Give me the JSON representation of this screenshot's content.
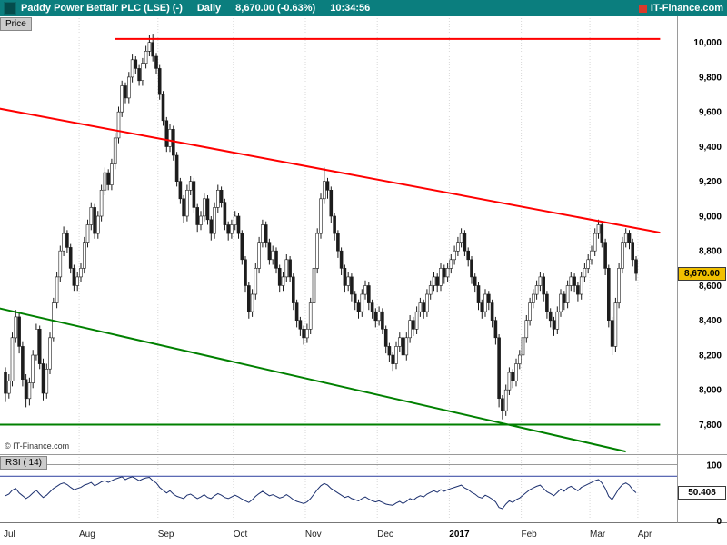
{
  "header": {
    "title": "Paddy Power Betfair PLC (LSE) (-)",
    "period": "Daily",
    "quote": "8,670.00 (-0.63%)",
    "time": "10:34:56",
    "brand": "IT-Finance.com"
  },
  "price_panel": {
    "tab_label": "Price",
    "badge": "8,670.00",
    "watermark": "© IT-Finance.com"
  },
  "rsi_panel": {
    "tab_label": "RSI ( 14)",
    "badge": "50.408"
  },
  "colors": {
    "header_bg": "#0b7e7e",
    "candle_stroke": "#1c1c1c",
    "up_fill": "#ffffff",
    "down_fill": "#1c1c1c",
    "trend_red": "#ff0000",
    "trend_green": "#008000",
    "rsi_line": "#1b2f6e",
    "rsi_level": "#4455aa",
    "price_badge_bg": "#f0c000",
    "rsi_badge_bg": "#ffffff",
    "grid": "#d8d8d8",
    "separator": "#9a9a9a"
  },
  "chart_data": {
    "type": "candlestick",
    "symbol": "Paddy Power Betfair PLC (LSE)",
    "timeframe": "Daily",
    "last_price": 8670.0,
    "change_pct": -0.63,
    "quote_time": "10:34:56",
    "ylim": [
      7630,
      10150
    ],
    "y_ticks": [
      10000,
      9800,
      9600,
      9400,
      9200,
      9000,
      8800,
      8600,
      8400,
      8200,
      8000,
      7800
    ],
    "x_labels": [
      {
        "label": "Jul",
        "day": 0
      },
      {
        "label": "Aug",
        "day": 22
      },
      {
        "label": "Sep",
        "day": 45
      },
      {
        "label": "Oct",
        "day": 67
      },
      {
        "label": "Nov",
        "day": 88
      },
      {
        "label": "Dec",
        "day": 109
      },
      {
        "label": "2017",
        "day": 130
      },
      {
        "label": "Feb",
        "day": 151
      },
      {
        "label": "Mar",
        "day": 171
      },
      {
        "label": "Apr",
        "day": 185
      }
    ],
    "candles_ohlc": [
      [
        8100,
        8130,
        7930,
        7980
      ],
      [
        7980,
        8090,
        7950,
        8050
      ],
      [
        8050,
        8330,
        8020,
        8300
      ],
      [
        8300,
        8460,
        8270,
        8420
      ],
      [
        8420,
        8440,
        8210,
        8250
      ],
      [
        8250,
        8280,
        8020,
        8060
      ],
      [
        8060,
        8090,
        7900,
        7950
      ],
      [
        7950,
        8070,
        7910,
        8040
      ],
      [
        8040,
        8230,
        8010,
        8200
      ],
      [
        8200,
        8380,
        8170,
        8350
      ],
      [
        8350,
        8370,
        8120,
        8150
      ],
      [
        8150,
        8180,
        7940,
        7980
      ],
      [
        7980,
        8150,
        7950,
        8120
      ],
      [
        8120,
        8330,
        8090,
        8300
      ],
      [
        8300,
        8530,
        8280,
        8500
      ],
      [
        8500,
        8680,
        8470,
        8650
      ],
      [
        8650,
        8830,
        8620,
        8800
      ],
      [
        8800,
        8940,
        8770,
        8900
      ],
      [
        8900,
        8920,
        8790,
        8820
      ],
      [
        8820,
        8840,
        8670,
        8700
      ],
      [
        8700,
        8720,
        8570,
        8600
      ],
      [
        8600,
        8680,
        8570,
        8650
      ],
      [
        8650,
        8730,
        8620,
        8700
      ],
      [
        8700,
        8880,
        8670,
        8850
      ],
      [
        8850,
        8980,
        8820,
        8950
      ],
      [
        8950,
        9080,
        8920,
        9050
      ],
      [
        9050,
        9070,
        8870,
        8900
      ],
      [
        8900,
        9030,
        8870,
        9000
      ],
      [
        9000,
        9180,
        8970,
        9150
      ],
      [
        9150,
        9280,
        9120,
        9250
      ],
      [
        9250,
        9270,
        9150,
        9180
      ],
      [
        9180,
        9330,
        9150,
        9300
      ],
      [
        9300,
        9480,
        9270,
        9450
      ],
      [
        9450,
        9630,
        9420,
        9600
      ],
      [
        9600,
        9780,
        9570,
        9750
      ],
      [
        9750,
        9770,
        9650,
        9680
      ],
      [
        9680,
        9830,
        9650,
        9800
      ],
      [
        9800,
        9930,
        9770,
        9900
      ],
      [
        9900,
        9920,
        9820,
        9850
      ],
      [
        9850,
        9870,
        9750,
        9780
      ],
      [
        9780,
        9910,
        9750,
        9880
      ],
      [
        9880,
        9980,
        9850,
        9950
      ],
      [
        9950,
        10040,
        9920,
        10000
      ],
      [
        10000,
        10050,
        9890,
        9920
      ],
      [
        9920,
        9940,
        9820,
        9850
      ],
      [
        9850,
        9870,
        9670,
        9700
      ],
      [
        9700,
        9720,
        9520,
        9550
      ],
      [
        9550,
        9570,
        9370,
        9400
      ],
      [
        9400,
        9530,
        9370,
        9500
      ],
      [
        9500,
        9520,
        9320,
        9350
      ],
      [
        9350,
        9370,
        9170,
        9200
      ],
      [
        9200,
        9220,
        9070,
        9100
      ],
      [
        9100,
        9120,
        8960,
        9000
      ],
      [
        9000,
        9180,
        8970,
        9150
      ],
      [
        9150,
        9230,
        9120,
        9200
      ],
      [
        9200,
        9220,
        9020,
        9050
      ],
      [
        9050,
        9070,
        8910,
        8950
      ],
      [
        8950,
        9030,
        8920,
        9000
      ],
      [
        9000,
        9130,
        8970,
        9100
      ],
      [
        9100,
        9120,
        8950,
        8980
      ],
      [
        8980,
        9000,
        8860,
        8900
      ],
      [
        8900,
        9080,
        8870,
        9050
      ],
      [
        9050,
        9180,
        9020,
        9150
      ],
      [
        9150,
        9170,
        9050,
        9080
      ],
      [
        9080,
        9100,
        8920,
        8950
      ],
      [
        8950,
        8970,
        8860,
        8900
      ],
      [
        8900,
        8980,
        8870,
        8950
      ],
      [
        8950,
        9030,
        8920,
        9000
      ],
      [
        9000,
        9020,
        8870,
        8900
      ],
      [
        8900,
        8920,
        8720,
        8750
      ],
      [
        8750,
        8770,
        8560,
        8600
      ],
      [
        8600,
        8620,
        8410,
        8450
      ],
      [
        8450,
        8580,
        8420,
        8550
      ],
      [
        8550,
        8730,
        8520,
        8700
      ],
      [
        8700,
        8880,
        8670,
        8850
      ],
      [
        8850,
        8980,
        8820,
        8950
      ],
      [
        8950,
        8970,
        8820,
        8850
      ],
      [
        8850,
        8870,
        8720,
        8750
      ],
      [
        8750,
        8830,
        8720,
        8800
      ],
      [
        8800,
        8820,
        8670,
        8700
      ],
      [
        8700,
        8720,
        8560,
        8600
      ],
      [
        8600,
        8680,
        8570,
        8650
      ],
      [
        8650,
        8780,
        8620,
        8750
      ],
      [
        8750,
        8770,
        8620,
        8650
      ],
      [
        8650,
        8670,
        8460,
        8500
      ],
      [
        8500,
        8520,
        8360,
        8400
      ],
      [
        8400,
        8420,
        8310,
        8350
      ],
      [
        8350,
        8370,
        8260,
        8300
      ],
      [
        8300,
        8380,
        8270,
        8350
      ],
      [
        8350,
        8530,
        8320,
        8500
      ],
      [
        8500,
        8730,
        8470,
        8700
      ],
      [
        8700,
        8930,
        8670,
        8900
      ],
      [
        8900,
        9130,
        8870,
        9100
      ],
      [
        9100,
        9280,
        9070,
        9200
      ],
      [
        9200,
        9220,
        9100,
        9150
      ],
      [
        9150,
        9170,
        8960,
        9000
      ],
      [
        9000,
        9020,
        8860,
        8900
      ],
      [
        8900,
        8920,
        8760,
        8800
      ],
      [
        8800,
        8820,
        8660,
        8700
      ],
      [
        8700,
        8720,
        8560,
        8600
      ],
      [
        8600,
        8680,
        8570,
        8650
      ],
      [
        8650,
        8670,
        8510,
        8550
      ],
      [
        8550,
        8570,
        8460,
        8500
      ],
      [
        8500,
        8520,
        8410,
        8450
      ],
      [
        8450,
        8580,
        8420,
        8550
      ],
      [
        8550,
        8630,
        8520,
        8600
      ],
      [
        8600,
        8620,
        8460,
        8500
      ],
      [
        8500,
        8520,
        8410,
        8450
      ],
      [
        8450,
        8470,
        8360,
        8400
      ],
      [
        8400,
        8480,
        8370,
        8450
      ],
      [
        8450,
        8470,
        8320,
        8350
      ],
      [
        8350,
        8370,
        8210,
        8250
      ],
      [
        8250,
        8270,
        8160,
        8200
      ],
      [
        8200,
        8220,
        8110,
        8150
      ],
      [
        8150,
        8280,
        8120,
        8250
      ],
      [
        8250,
        8330,
        8220,
        8300
      ],
      [
        8300,
        8320,
        8160,
        8200
      ],
      [
        8200,
        8330,
        8170,
        8300
      ],
      [
        8300,
        8430,
        8270,
        8400
      ],
      [
        8400,
        8420,
        8310,
        8350
      ],
      [
        8350,
        8480,
        8320,
        8450
      ],
      [
        8450,
        8530,
        8420,
        8500
      ],
      [
        8500,
        8520,
        8410,
        8450
      ],
      [
        8450,
        8580,
        8420,
        8550
      ],
      [
        8550,
        8630,
        8520,
        8600
      ],
      [
        8600,
        8680,
        8570,
        8650
      ],
      [
        8650,
        8670,
        8560,
        8600
      ],
      [
        8600,
        8730,
        8570,
        8700
      ],
      [
        8700,
        8720,
        8610,
        8650
      ],
      [
        8650,
        8730,
        8620,
        8700
      ],
      [
        8700,
        8780,
        8670,
        8750
      ],
      [
        8750,
        8830,
        8720,
        8800
      ],
      [
        8800,
        8880,
        8770,
        8850
      ],
      [
        8850,
        8930,
        8820,
        8900
      ],
      [
        8900,
        8920,
        8770,
        8800
      ],
      [
        8800,
        8820,
        8710,
        8750
      ],
      [
        8750,
        8770,
        8610,
        8650
      ],
      [
        8650,
        8670,
        8560,
        8600
      ],
      [
        8600,
        8620,
        8460,
        8500
      ],
      [
        8500,
        8520,
        8410,
        8450
      ],
      [
        8450,
        8580,
        8420,
        8550
      ],
      [
        8550,
        8570,
        8460,
        8500
      ],
      [
        8500,
        8520,
        8360,
        8400
      ],
      [
        8400,
        8420,
        8260,
        8300
      ],
      [
        8300,
        8320,
        7900,
        7950
      ],
      [
        7950,
        7970,
        7830,
        7880
      ],
      [
        7880,
        8030,
        7850,
        8000
      ],
      [
        8000,
        8130,
        7970,
        8100
      ],
      [
        8100,
        8120,
        8010,
        8050
      ],
      [
        8050,
        8180,
        8020,
        8150
      ],
      [
        8150,
        8230,
        8120,
        8200
      ],
      [
        8200,
        8330,
        8170,
        8300
      ],
      [
        8300,
        8430,
        8270,
        8400
      ],
      [
        8400,
        8530,
        8370,
        8500
      ],
      [
        8500,
        8580,
        8470,
        8550
      ],
      [
        8550,
        8630,
        8520,
        8600
      ],
      [
        8600,
        8680,
        8570,
        8650
      ],
      [
        8650,
        8670,
        8510,
        8550
      ],
      [
        8550,
        8570,
        8410,
        8450
      ],
      [
        8450,
        8470,
        8360,
        8400
      ],
      [
        8400,
        8420,
        8310,
        8350
      ],
      [
        8350,
        8480,
        8320,
        8450
      ],
      [
        8450,
        8580,
        8420,
        8550
      ],
      [
        8550,
        8570,
        8460,
        8500
      ],
      [
        8500,
        8630,
        8470,
        8600
      ],
      [
        8600,
        8680,
        8570,
        8650
      ],
      [
        8650,
        8670,
        8560,
        8600
      ],
      [
        8600,
        8620,
        8510,
        8550
      ],
      [
        8550,
        8680,
        8520,
        8650
      ],
      [
        8650,
        8730,
        8620,
        8700
      ],
      [
        8700,
        8780,
        8670,
        8750
      ],
      [
        8750,
        8830,
        8720,
        8800
      ],
      [
        8800,
        8930,
        8770,
        8900
      ],
      [
        8900,
        8980,
        8870,
        8950
      ],
      [
        8950,
        8970,
        8820,
        8850
      ],
      [
        8850,
        8870,
        8660,
        8700
      ],
      [
        8700,
        8720,
        8360,
        8400
      ],
      [
        8400,
        8420,
        8200,
        8250
      ],
      [
        8250,
        8530,
        8220,
        8500
      ],
      [
        8500,
        8730,
        8470,
        8700
      ],
      [
        8700,
        8880,
        8670,
        8850
      ],
      [
        8850,
        8930,
        8820,
        8900
      ],
      [
        8900,
        8920,
        8810,
        8850
      ],
      [
        8850,
        8870,
        8710,
        8750
      ],
      [
        8750,
        8770,
        8630,
        8670
      ]
    ],
    "rsi": {
      "period": 14,
      "range": [
        0,
        100
      ],
      "ticks": [
        100,
        0
      ],
      "upper_level": 80,
      "last": 50.408,
      "values": [
        45,
        48,
        55,
        58,
        50,
        45,
        40,
        44,
        50,
        55,
        48,
        42,
        46,
        52,
        58,
        62,
        66,
        68,
        65,
        60,
        56,
        58,
        60,
        64,
        66,
        69,
        63,
        66,
        70,
        72,
        69,
        72,
        75,
        77,
        79,
        74,
        77,
        79,
        76,
        72,
        75,
        77,
        78,
        72,
        68,
        60,
        55,
        50,
        54,
        48,
        44,
        42,
        40,
        46,
        48,
        44,
        40,
        43,
        47,
        42,
        40,
        45,
        49,
        46,
        42,
        40,
        43,
        46,
        43,
        39,
        36,
        33,
        38,
        44,
        49,
        53,
        49,
        45,
        47,
        44,
        41,
        43,
        47,
        43,
        38,
        35,
        33,
        31,
        34,
        40,
        48,
        56,
        63,
        67,
        64,
        58,
        54,
        50,
        46,
        42,
        44,
        40,
        38,
        36,
        40,
        43,
        39,
        36,
        34,
        36,
        33,
        30,
        29,
        28,
        32,
        35,
        31,
        35,
        40,
        37,
        42,
        45,
        43,
        48,
        51,
        54,
        51,
        56,
        53,
        56,
        58,
        60,
        62,
        64,
        59,
        56,
        51,
        48,
        43,
        41,
        46,
        43,
        39,
        34,
        24,
        22,
        30,
        36,
        33,
        38,
        41,
        46,
        51,
        56,
        59,
        62,
        64,
        58,
        52,
        49,
        45,
        51,
        57,
        53,
        59,
        62,
        58,
        54,
        60,
        63,
        66,
        69,
        72,
        74,
        68,
        58,
        44,
        38,
        48,
        58,
        65,
        68,
        64,
        56,
        50.408
      ]
    },
    "trendlines": [
      {
        "name": "horizontal-resistance",
        "color": "#ff0000",
        "x1_day": 32,
        "price1": 10020,
        "x2_day": 191,
        "price2": 10020
      },
      {
        "name": "descending-resistance",
        "color": "#ff0000",
        "x1_day": -2,
        "price1": 9620,
        "x2_day": 191,
        "price2": 8905
      },
      {
        "name": "horizontal-support",
        "color": "#008000",
        "x1_day": -2,
        "price1": 7800,
        "x2_day": 191,
        "price2": 7800
      },
      {
        "name": "descending-support",
        "color": "#008000",
        "x1_day": -2,
        "price1": 8470,
        "x2_day": 181,
        "price2": 7645
      }
    ]
  }
}
